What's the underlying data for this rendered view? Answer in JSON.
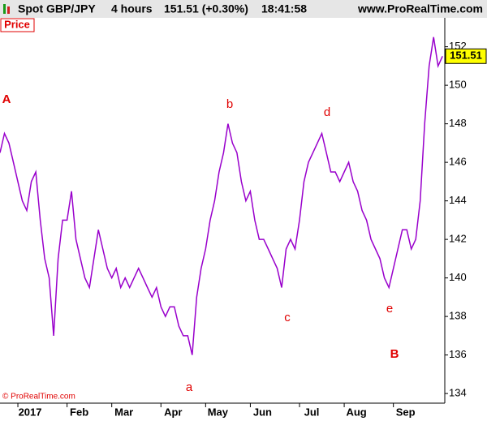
{
  "header": {
    "symbol": "Spot GBP/JPY",
    "interval": "4 hours",
    "quote": "151.51 (+0.30%)",
    "time": "18:41:58",
    "site": "www.ProRealTime.com"
  },
  "price_label": "Price",
  "copyright": "© ProRealTime.com",
  "chart_data": {
    "type": "line",
    "color": "#9900cc",
    "values": [
      146.5,
      147.5,
      147,
      146,
      145,
      144,
      143.5,
      145,
      145.5,
      143,
      141,
      140,
      137,
      141,
      143,
      143,
      144.5,
      142,
      141,
      140,
      139.5,
      141,
      142.5,
      141.5,
      140.5,
      140,
      140.5,
      139.5,
      140,
      139.5,
      140,
      140.5,
      140,
      139.5,
      139,
      139.5,
      138.5,
      138,
      138.5,
      138.5,
      137.5,
      137,
      137,
      136,
      139,
      140.5,
      141.5,
      143,
      144,
      145.5,
      146.5,
      148,
      147,
      146.5,
      145,
      144,
      144.5,
      143,
      142,
      142,
      141.5,
      141,
      140.5,
      139.5,
      141.5,
      142,
      141.5,
      143,
      145,
      146,
      146.5,
      147,
      147.5,
      146.5,
      145.5,
      145.5,
      145,
      145.5,
      146,
      145,
      144.5,
      143.5,
      143,
      142,
      141.5,
      141,
      140,
      139.5,
      140.5,
      141.5,
      142.5,
      142.5,
      141.5,
      142,
      144,
      148,
      151,
      152.5,
      151,
      151.51
    ],
    "xlim": [
      0,
      99.5
    ],
    "xticks": [
      {
        "value": 4,
        "label": "2017"
      },
      {
        "value": 15,
        "label": "Feb"
      },
      {
        "value": 25,
        "label": "Mar"
      },
      {
        "value": 36,
        "label": "Apr"
      },
      {
        "value": 46,
        "label": "May"
      },
      {
        "value": 56,
        "label": "Jun"
      },
      {
        "value": 67,
        "label": "Jul"
      },
      {
        "value": 77,
        "label": "Aug"
      },
      {
        "value": 88,
        "label": "Sep"
      }
    ],
    "ylim": [
      133.5,
      153.5
    ],
    "yticks": [
      134,
      136,
      138,
      140,
      142,
      144,
      146,
      148,
      150,
      152
    ],
    "last_price": 151.51,
    "annotations": [
      "A",
      "B",
      "a",
      "b",
      "c",
      "d",
      "e"
    ]
  }
}
